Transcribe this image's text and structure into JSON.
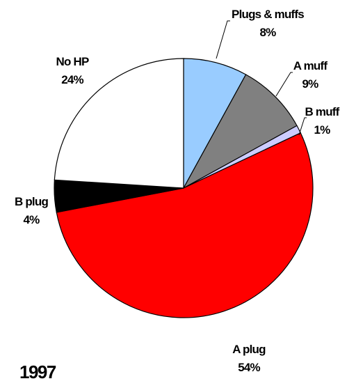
{
  "chart_data": {
    "type": "pie",
    "caption": "1997",
    "slices": [
      {
        "name": "Plugs & muffs",
        "value": 8,
        "label": "8%",
        "color": "#99ccff"
      },
      {
        "name": "A muff",
        "value": 9,
        "label": "9%",
        "color": "#808080"
      },
      {
        "name": "B muff",
        "value": 1,
        "label": "1%",
        "color": "#ccccff"
      },
      {
        "name": "A plug",
        "value": 54,
        "label": "54%",
        "color": "#ff0000"
      },
      {
        "name": "B plug",
        "value": 4,
        "label": "4%",
        "color": "#000000"
      },
      {
        "name": "No HP",
        "value": 24,
        "label": "24%",
        "color": "#ffffff"
      }
    ]
  }
}
